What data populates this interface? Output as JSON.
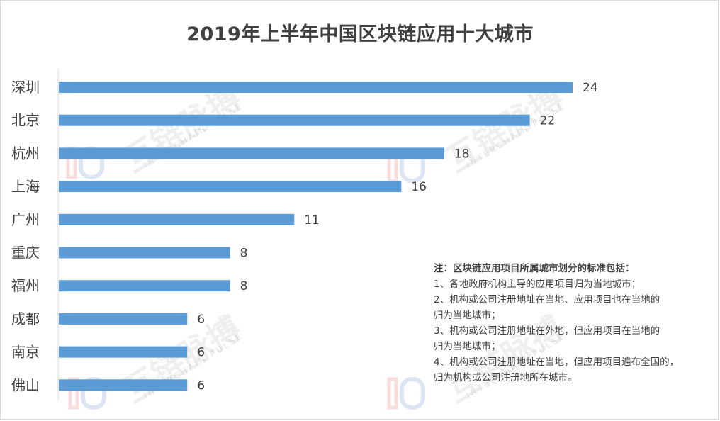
{
  "chart_data": {
    "type": "bar",
    "orientation": "horizontal",
    "title": "2019年上半年中国区块链应用十大城市",
    "categories": [
      "深圳",
      "北京",
      "杭州",
      "上海",
      "广州",
      "重庆",
      "福州",
      "成都",
      "南京",
      "佛山"
    ],
    "values": [
      24,
      22,
      18,
      16,
      11,
      8,
      8,
      6,
      6,
      6
    ],
    "xlim": [
      0,
      24
    ],
    "bar_color": "#5b9bd5",
    "grid": false,
    "legend": false,
    "data_labels": true
  },
  "watermark": {
    "text": "互链脉搏",
    "subtext": "INTERCHAIN PULSE"
  },
  "note": {
    "title": "注：区块链应用项目所属城市划分的标准包括：",
    "lines": [
      "1、各地政府机构主导的应用项目归为当地城市；",
      "2、机构或公司注册地址在当地、应用项目也在当地的",
      "归为当地城市；",
      "3、机构或公司注册地址在外地，但应用项目在当地的",
      "归为当地城市；",
      "4、机构或公司注册地址在当地，但应用项目遍布全国的，",
      "归为机构或公司注册地所在城市。"
    ]
  }
}
